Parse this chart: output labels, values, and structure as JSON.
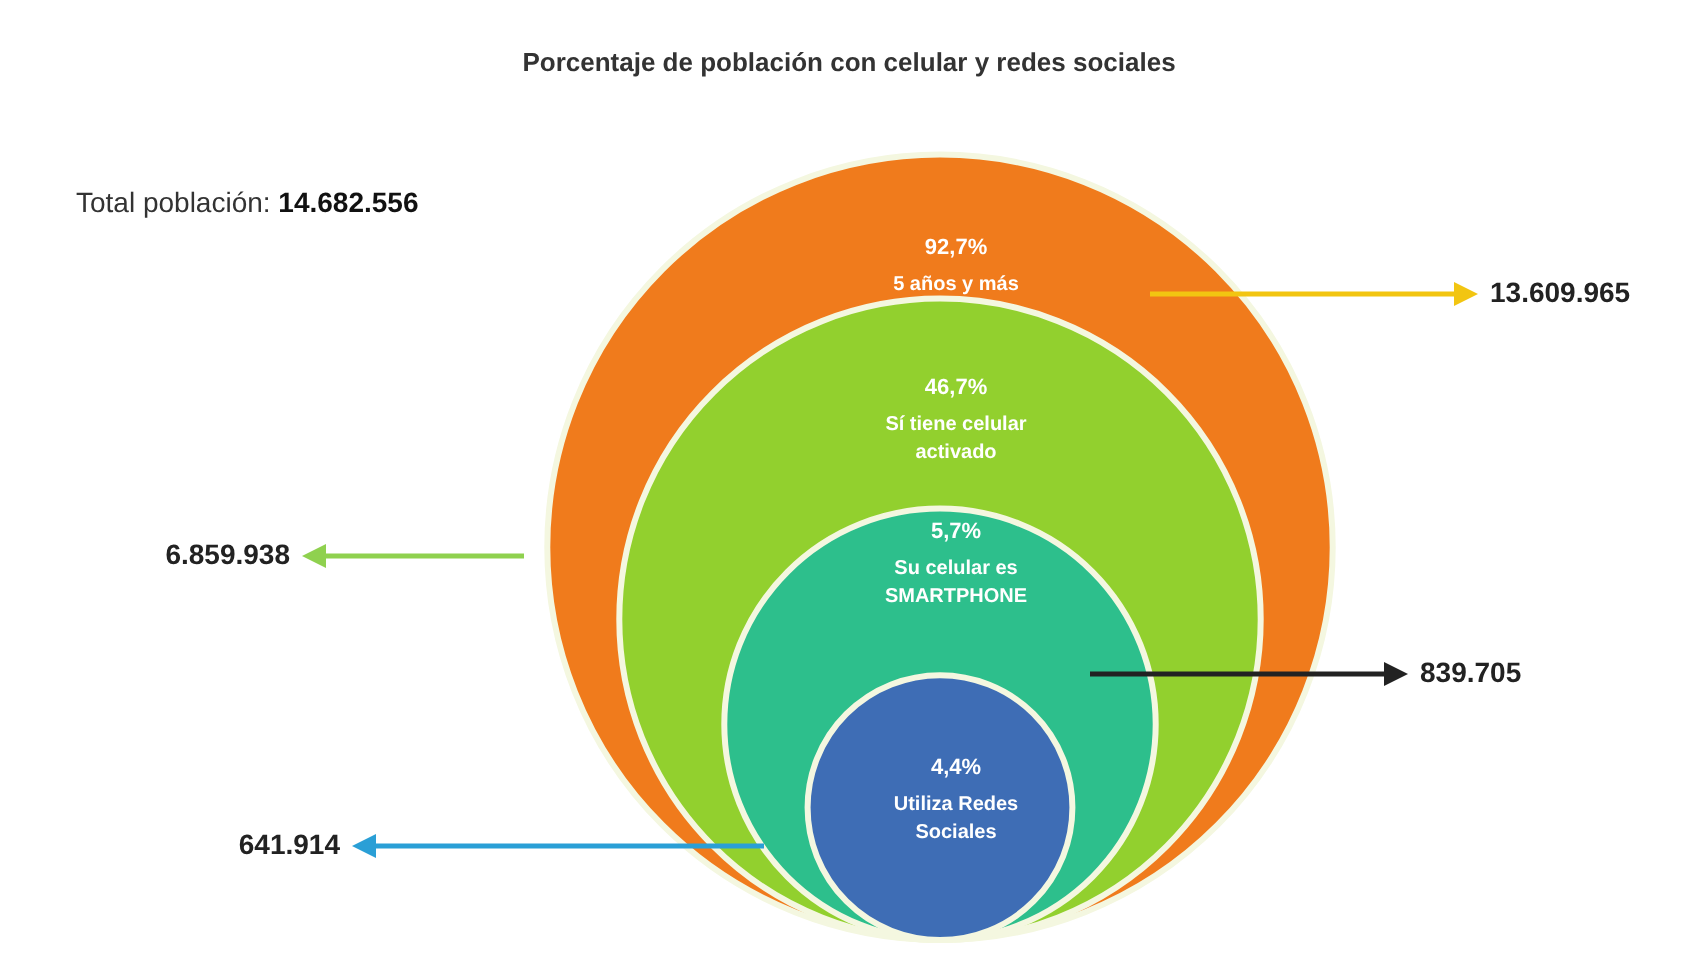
{
  "chart_data": {
    "type": "other",
    "title": "Porcentaje de población con celular y redes sociales",
    "categories": [
      "5 años y más",
      "Sí tiene celular activado",
      "Su celular es SMARTPHONE",
      "Utiliza Redes Sociales"
    ],
    "values": [
      92.7,
      46.7,
      5.7,
      4.4
    ],
    "value_labels": [
      "92,7%",
      "46,7%",
      "5,7%",
      "4,4%"
    ],
    "colors": [
      "#f07b1c",
      "#92d02e",
      "#2dbf8c",
      "#3e6db5"
    ],
    "annotations": [
      "Total población: 14.682.556",
      {
        "text": "13.609.965",
        "x": "5 años y más"
      },
      {
        "text": "6.859.938",
        "x": "Sí tiene celular activado"
      },
      {
        "text": "839.705",
        "x": "Su celular es SMARTPHONE"
      },
      {
        "text": "641.914",
        "x": "Utiliza Redes Sociales"
      }
    ]
  }
}
